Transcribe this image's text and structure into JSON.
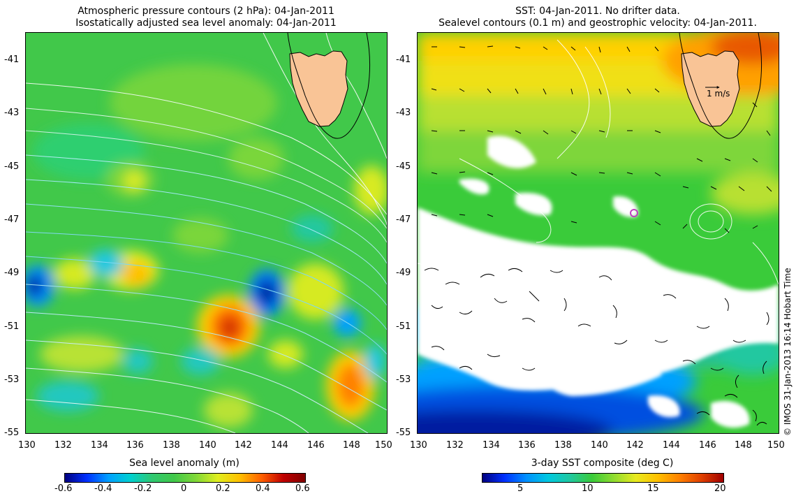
{
  "left_panel": {
    "title_line1": "Atmospheric pressure contours (2 hPa): 04-Jan-2011",
    "title_line2": "Isostatically adjusted sea level anomaly: 04-Jan-2011",
    "colorbar_label": "Sea level anomaly (m)",
    "colorbar_ticks": [
      "-0.6",
      "-0.4",
      "-0.2",
      "0",
      "0.2",
      "0.4",
      "0.6"
    ]
  },
  "right_panel": {
    "title_line1": "SST: 04-Jan-2011. No drifter data.",
    "title_line2": "Sealevel contours (0.1 m) and geostrophic velocity: 04-Jan-2011.",
    "colorbar_label": "3-day SST composite (deg C)",
    "colorbar_ticks": [
      "5",
      "10",
      "15",
      "20"
    ],
    "velocity_scale_label": "1 m/s"
  },
  "axes": {
    "lat_ticks": [
      "-41",
      "-43",
      "-45",
      "-47",
      "-49",
      "-51",
      "-53",
      "-55"
    ],
    "lon_ticks": [
      "130",
      "132",
      "134",
      "136",
      "138",
      "140",
      "142",
      "144",
      "146",
      "148",
      "150"
    ]
  },
  "credit": "© IMOS 31-Jan-2013 16:14 Hobart Time",
  "colors": {
    "land": "#f9c496",
    "sla_colormap": [
      "#00007f",
      "#0066ff",
      "#00c8ff",
      "#2fcf7f",
      "#41c84a",
      "#7ad63a",
      "#e0ee20",
      "#ffb000",
      "#ff5a00",
      "#b80000"
    ],
    "sst_colormap": [
      "#00007f",
      "#0040ff",
      "#00b0ff",
      "#00d0a0",
      "#3acb3a",
      "#a8e030",
      "#ffd000",
      "#ff8000",
      "#c02000"
    ]
  }
}
